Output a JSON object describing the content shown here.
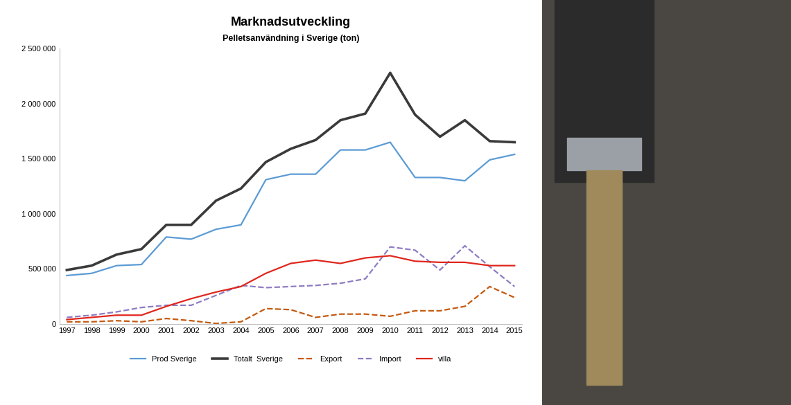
{
  "chart_data": {
    "type": "line",
    "title": "Marknadsutveckling",
    "subtitle": "Pelletsanvändning i Sverige (ton)",
    "categories": [
      "1997",
      "1998",
      "1999",
      "2000",
      "2001",
      "2002",
      "2003",
      "2004",
      "2005",
      "2006",
      "2007",
      "2008",
      "2009",
      "2010",
      "2011",
      "2012",
      "2013",
      "2014",
      "2015"
    ],
    "series": [
      {
        "name": "Prod Sverige",
        "color": "#5b9bd5",
        "line_style": "solid",
        "values": [
          440000,
          460000,
          530000,
          540000,
          790000,
          770000,
          860000,
          900000,
          1310000,
          1360000,
          1360000,
          1580000,
          1580000,
          1650000,
          1330000,
          1330000,
          1300000,
          1490000,
          1540000
        ]
      },
      {
        "name": "Totalt  Sverige",
        "color": "#3a3a3a",
        "line_style": "solid",
        "values": [
          490000,
          530000,
          630000,
          680000,
          900000,
          900000,
          1120000,
          1230000,
          1470000,
          1590000,
          1670000,
          1850000,
          1910000,
          2280000,
          1900000,
          1700000,
          1850000,
          1660000,
          1650000
        ]
      },
      {
        "name": "Export",
        "color": "#c55a11",
        "line_style": "dashed",
        "values": [
          20000,
          20000,
          30000,
          20000,
          50000,
          30000,
          5000,
          20000,
          140000,
          130000,
          60000,
          90000,
          90000,
          70000,
          120000,
          120000,
          160000,
          340000,
          240000
        ]
      },
      {
        "name": "Import",
        "color": "#8e7cc3",
        "line_style": "dashed",
        "values": [
          60000,
          80000,
          110000,
          150000,
          170000,
          170000,
          260000,
          350000,
          330000,
          340000,
          350000,
          370000,
          410000,
          700000,
          670000,
          490000,
          710000,
          520000,
          340000
        ]
      },
      {
        "name": "villa",
        "color": "#e0261c",
        "line_style": "solid",
        "values": [
          40000,
          60000,
          80000,
          80000,
          160000,
          230000,
          290000,
          340000,
          460000,
          550000,
          580000,
          550000,
          600000,
          620000,
          570000,
          560000,
          560000,
          530000,
          530000
        ]
      }
    ],
    "ylim": [
      0,
      2500000
    ],
    "yticks": [
      0,
      {
        "value": 500000,
        "label": "500 000"
      },
      {
        "value": 1000000,
        "label": "1 000 000"
      },
      {
        "value": 1500000,
        "label": "1 500 000"
      },
      {
        "value": 2000000,
        "label": "2 000 000"
      },
      {
        "value": 2500000,
        "label": "2 500 000"
      }
    ],
    "grid": false,
    "legend": "bottom"
  }
}
